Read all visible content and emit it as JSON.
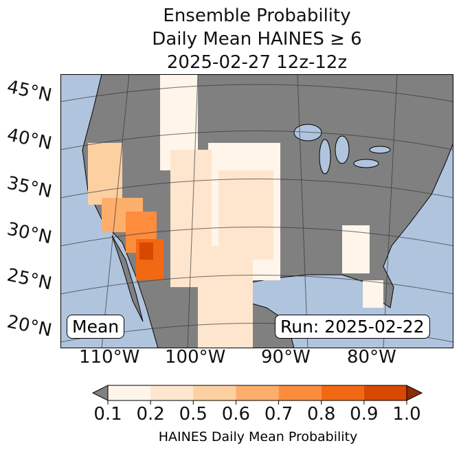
{
  "title": [
    "Ensemble Probability",
    "Daily Mean HAINES ≥ 6",
    "2025-02-27 12z-12z"
  ],
  "lat_labels": [
    "45°N",
    "40°N",
    "35°N",
    "30°N",
    "25°N",
    "20°N"
  ],
  "lon_labels": [
    "110°W",
    "100°W",
    "90°W",
    "80°W"
  ],
  "stat_label": "Mean",
  "run_label": "Run: 2025-02-22",
  "colorbar": {
    "label": "HAINES Daily Mean Probability",
    "ticks": [
      "0.1",
      "0.2",
      "0.5",
      "0.6",
      "0.7",
      "0.8",
      "0.9",
      "1.0"
    ],
    "colors": [
      "#fff5eb",
      "#fee6ce",
      "#fdd0a2",
      "#fdae6b",
      "#fd8d3c",
      "#f16913",
      "#d94801"
    ],
    "under_color": "#808080",
    "over_color": "#8c2d04"
  },
  "colors": {
    "ocean": "#b0c4de",
    "land": "#808080"
  }
}
